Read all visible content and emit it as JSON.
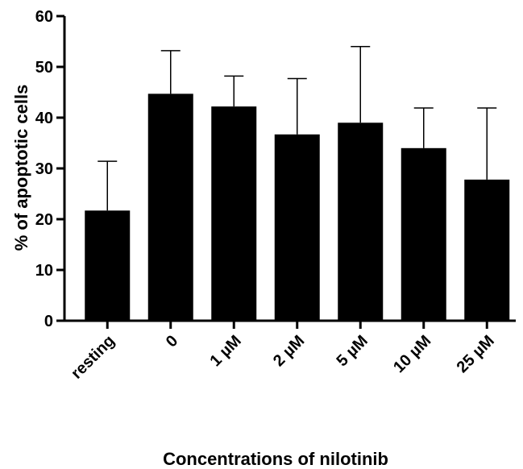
{
  "chart_data": {
    "type": "bar",
    "categories": [
      "resting",
      "0",
      "1 µM",
      "2 µM",
      "5 µM",
      "10 µM",
      "25 µM"
    ],
    "values": [
      21.7,
      44.7,
      42.2,
      36.7,
      39.0,
      34.0,
      27.8
    ],
    "error_upper": [
      31.4,
      53.2,
      48.2,
      47.7,
      54.0,
      41.9,
      41.9
    ],
    "ylabel": "% of apoptotic cells",
    "xlabel": "Concentrations of nilotinib",
    "ylim": [
      0,
      60
    ],
    "yticks": [
      0,
      10,
      20,
      30,
      40,
      50,
      60
    ],
    "grid": false,
    "bar_color": "#000000"
  }
}
